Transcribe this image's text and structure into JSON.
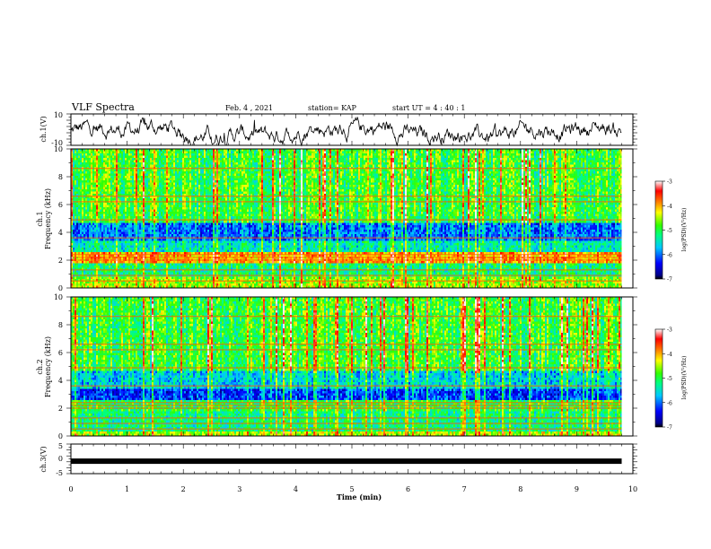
{
  "header": {
    "title": "VLF Spectra",
    "date": "Feb. 4 , 2021",
    "station": "station= KAP",
    "start": "start  UT =   4 : 40 : 1"
  },
  "chart_data": [
    {
      "type": "line",
      "panel": "ch1-waveform",
      "ylabel": "ch.1(V)",
      "xlim": [
        0,
        10
      ],
      "ylim": [
        -10,
        10
      ],
      "yticks": [
        "10",
        "-10"
      ],
      "x_end": 9.8,
      "baseline": -1.5,
      "amplitude": 6,
      "color": "#000000"
    },
    {
      "type": "heatmap",
      "panel": "ch1-spectrogram",
      "ylabel": "ch.1\nFrequency (kHz)",
      "xlim": [
        0,
        10
      ],
      "ylim": [
        0,
        10
      ],
      "yticks": [
        "0",
        "2",
        "4",
        "6",
        "8",
        "10"
      ],
      "x_end": 9.8,
      "level_profile": [
        {
          "f0": 0.0,
          "f1": 0.3,
          "level": -4.5
        },
        {
          "f0": 0.3,
          "f1": 0.8,
          "level": -4.6
        },
        {
          "f0": 0.8,
          "f1": 1.8,
          "level": -5.2
        },
        {
          "f0": 1.8,
          "f1": 2.6,
          "level": -4.0
        },
        {
          "f0": 2.6,
          "f1": 3.4,
          "level": -5.4
        },
        {
          "f0": 3.4,
          "f1": 4.6,
          "level": -6.0
        },
        {
          "f0": 4.6,
          "f1": 5.2,
          "level": -5.0
        },
        {
          "f0": 5.2,
          "f1": 10.0,
          "level": -4.9
        }
      ],
      "colorbar": {
        "label": "log(PSD)(V²/Hz)",
        "min": -7,
        "max": -3,
        "ticks": [
          "-3",
          "-4",
          "-5",
          "-6",
          "-7"
        ]
      }
    },
    {
      "type": "heatmap",
      "panel": "ch2-spectrogram",
      "ylabel": "ch.2\nFrequency (kHz)",
      "xlim": [
        0,
        10
      ],
      "ylim": [
        0,
        10
      ],
      "yticks": [
        "0",
        "2",
        "4",
        "6",
        "8",
        "10"
      ],
      "x_end": 9.8,
      "level_profile": [
        {
          "f0": 0.0,
          "f1": 0.3,
          "level": -4.5
        },
        {
          "f0": 0.3,
          "f1": 1.8,
          "level": -5.2
        },
        {
          "f0": 1.8,
          "f1": 2.6,
          "level": -5.0
        },
        {
          "f0": 2.6,
          "f1": 3.4,
          "level": -6.2
        },
        {
          "f0": 3.4,
          "f1": 4.6,
          "level": -5.6
        },
        {
          "f0": 4.6,
          "f1": 10.0,
          "level": -4.9
        }
      ],
      "colorbar": {
        "label": "log(PSD)(V²/Hz)",
        "min": -7,
        "max": -3,
        "ticks": [
          "-3",
          "-4",
          "-5",
          "-6",
          "-7"
        ]
      }
    },
    {
      "type": "line",
      "panel": "ch3-waveform",
      "ylabel": "ch.3(V)",
      "xlim": [
        0,
        10
      ],
      "ylim": [
        -5,
        5
      ],
      "yticks": [
        "5",
        "0",
        "-5"
      ],
      "x_end": 9.8,
      "baseline": 0,
      "color": "#000000"
    }
  ],
  "xaxis": {
    "label": "Time  (min)",
    "ticks": [
      "0",
      "1",
      "2",
      "3",
      "4",
      "5",
      "6",
      "7",
      "8",
      "9",
      "10"
    ]
  }
}
